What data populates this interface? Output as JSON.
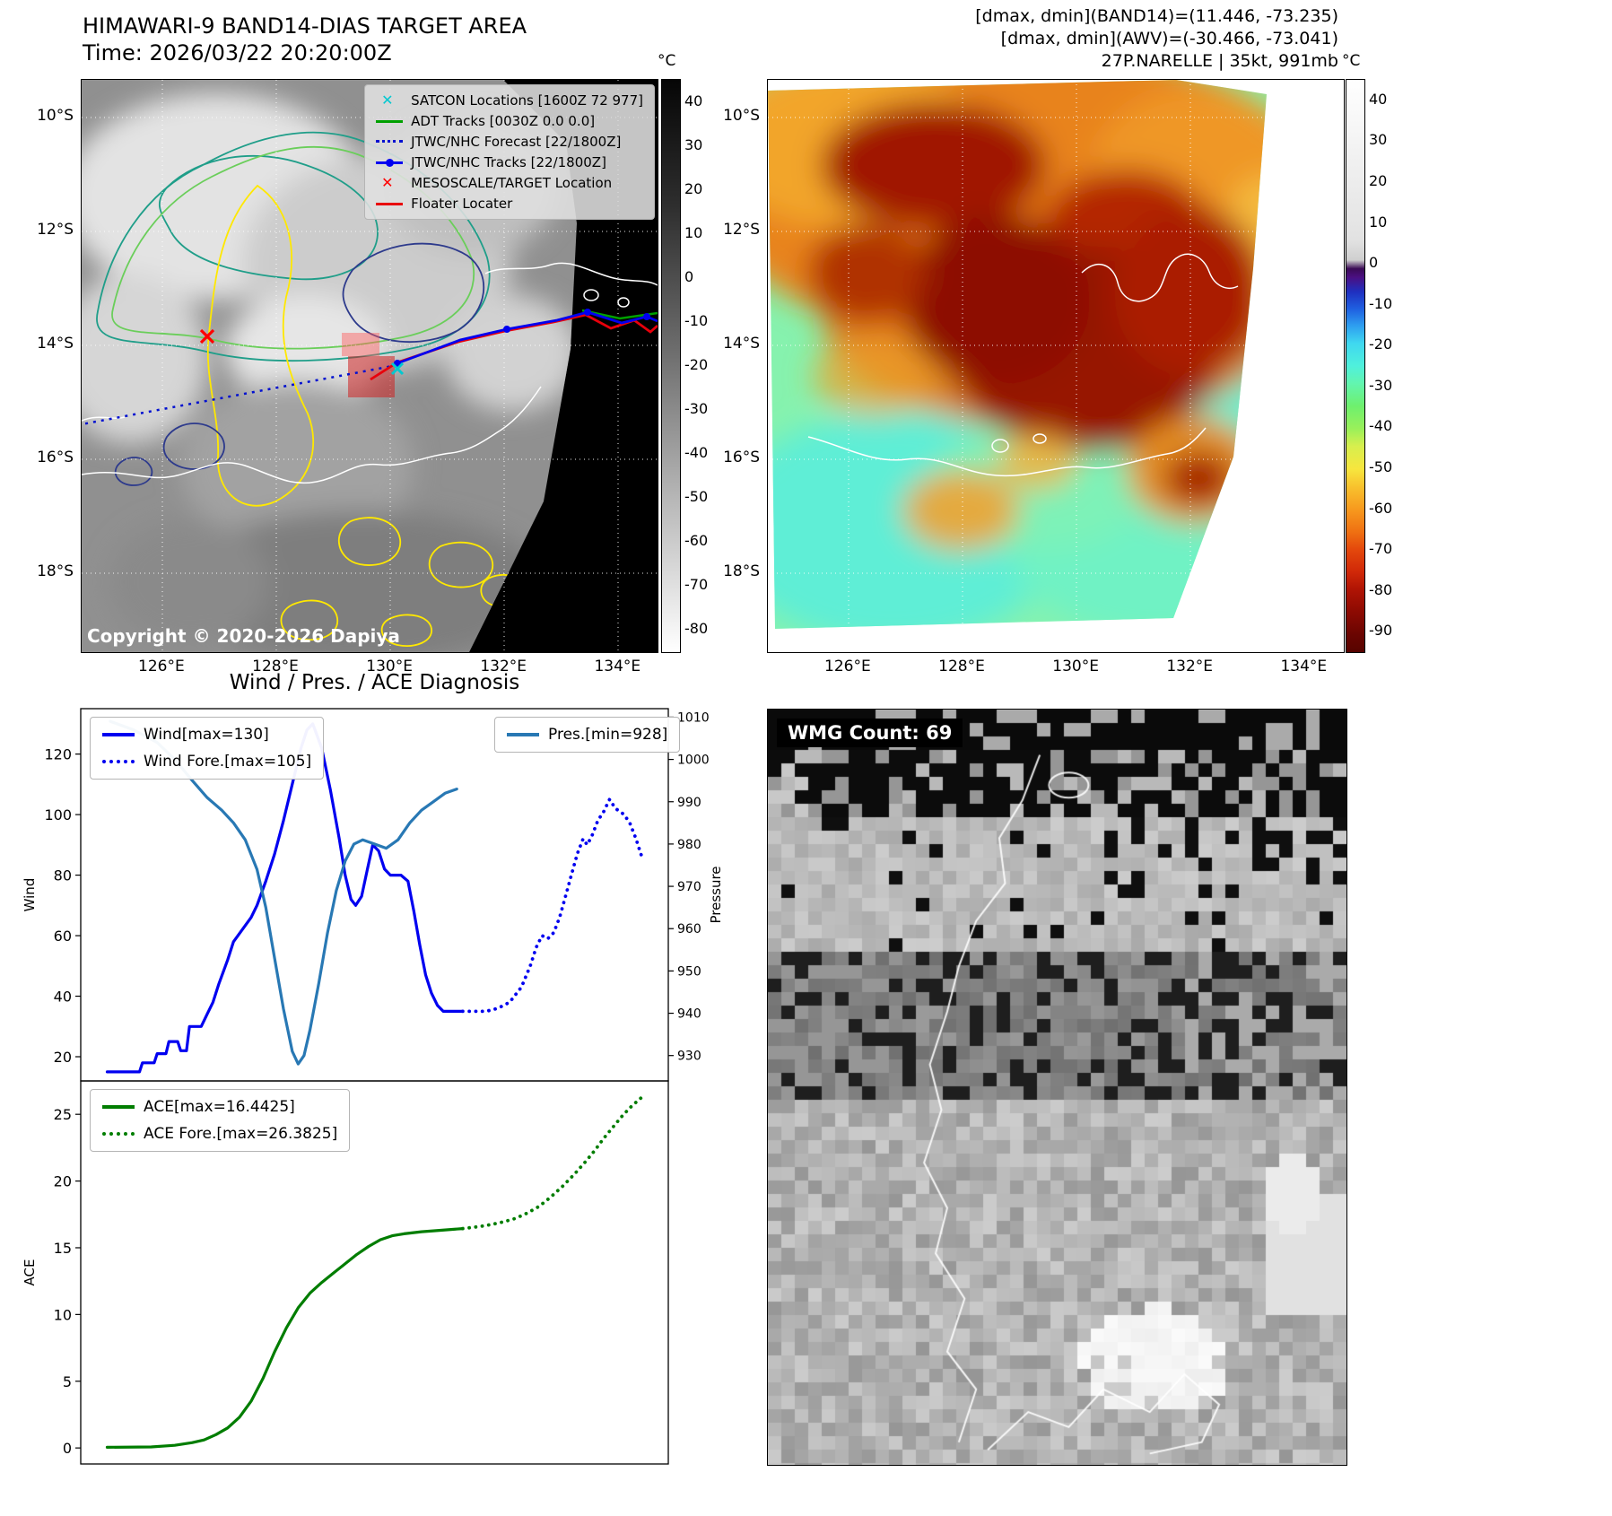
{
  "panel_tl": {
    "title": "HIMAWARI-9 BAND14-DIAS TARGET AREA",
    "subtitle": "Time: 2026/03/22 20:20:00Z",
    "copyright": "Copyright © 2020-2026 Dapiya",
    "legend": [
      {
        "label": "SATCON Locations [1600Z 72 977]",
        "marker": "cyan-x"
      },
      {
        "label": "ADT Tracks [0030Z 0.0 0.0]",
        "marker": "green-line"
      },
      {
        "label": "JTWC/NHC Forecast [22/1800Z]",
        "marker": "blue-dotted"
      },
      {
        "label": "JTWC/NHC Tracks [22/1800Z]",
        "marker": "blue-line-dot"
      },
      {
        "label": "MESOSCALE/TARGET Location",
        "marker": "red-x"
      },
      {
        "label": "Floater Locater",
        "marker": "red-line"
      }
    ],
    "lat_labels": [
      "10°S",
      "12°S",
      "14°S",
      "16°S",
      "18°S"
    ],
    "lon_labels": [
      "126°E",
      "128°E",
      "130°E",
      "132°E",
      "134°E"
    ],
    "colorbar": {
      "unit": "°C",
      "max": 45,
      "min": -85,
      "ticks": [
        40,
        30,
        20,
        10,
        0,
        -10,
        -20,
        -30,
        -40,
        -50,
        -60,
        -70,
        -80
      ]
    }
  },
  "panel_tr": {
    "header_lines": [
      "[dmax, dmin](BAND14)=(11.446, -73.235)",
      "[dmax, dmin](AWV)=(-30.466, -73.041)",
      "27P.NARELLE | 35kt, 991mb"
    ],
    "lat_labels": [
      "10°S",
      "12°S",
      "14°S",
      "16°S",
      "18°S"
    ],
    "lon_labels": [
      "126°E",
      "128°E",
      "130°E",
      "132°E",
      "134°E"
    ],
    "colorbar": {
      "unit": "°C",
      "max": 45,
      "min": -95,
      "ticks": [
        40,
        30,
        20,
        10,
        0,
        -10,
        -20,
        -30,
        -40,
        -50,
        -60,
        -70,
        -80,
        -90
      ]
    }
  },
  "panel_br": {
    "badge": "WMG Count: 69"
  },
  "section_title": "Wind / Pres. / ACE Diagnosis",
  "accent_colors": {
    "wind_blue": "#0000f0",
    "pressure_teal": "#2878b4",
    "ace_green": "#007d00",
    "track_red": "#e8000b",
    "adt_green": "#00a000",
    "satcon_cyan": "#00c8d0"
  },
  "chart_data": [
    {
      "type": "line",
      "title": "Wind / Pressure diagnosis",
      "xlabel": "",
      "y_left": {
        "label": "Wind",
        "range": [
          12,
          135
        ],
        "ticks": [
          20,
          40,
          60,
          80,
          100,
          120
        ]
      },
      "y_right": {
        "label": "Pressure",
        "range": [
          924,
          1012
        ],
        "ticks": [
          930,
          940,
          950,
          960,
          970,
          980,
          990,
          1000,
          1010
        ]
      },
      "legend_position": "upper left / upper right",
      "series": [
        {
          "name": "Wind[max=130]",
          "style": "solid",
          "color": "#0000f0",
          "axis": "left",
          "points": [
            [
              0.045,
              15
            ],
            [
              0.1,
              15
            ],
            [
              0.105,
              18
            ],
            [
              0.125,
              18
            ],
            [
              0.13,
              21
            ],
            [
              0.145,
              21
            ],
            [
              0.15,
              25
            ],
            [
              0.165,
              25
            ],
            [
              0.17,
              22
            ],
            [
              0.18,
              22
            ],
            [
              0.185,
              30
            ],
            [
              0.205,
              30
            ],
            [
              0.215,
              34
            ],
            [
              0.225,
              38
            ],
            [
              0.235,
              44
            ],
            [
              0.25,
              52
            ],
            [
              0.26,
              58
            ],
            [
              0.275,
              62
            ],
            [
              0.29,
              66
            ],
            [
              0.3,
              70
            ],
            [
              0.315,
              78
            ],
            [
              0.33,
              87
            ],
            [
              0.345,
              98
            ],
            [
              0.36,
              110
            ],
            [
              0.375,
              122
            ],
            [
              0.385,
              128
            ],
            [
              0.395,
              130
            ],
            [
              0.41,
              122
            ],
            [
              0.425,
              108
            ],
            [
              0.44,
              92
            ],
            [
              0.45,
              80
            ],
            [
              0.46,
              72
            ],
            [
              0.468,
              70
            ],
            [
              0.478,
              73
            ],
            [
              0.488,
              82
            ],
            [
              0.497,
              90
            ],
            [
              0.507,
              88
            ],
            [
              0.517,
              82
            ],
            [
              0.527,
              80
            ],
            [
              0.545,
              80
            ],
            [
              0.557,
              78
            ],
            [
              0.567,
              68
            ],
            [
              0.577,
              57
            ],
            [
              0.587,
              47
            ],
            [
              0.597,
              41
            ],
            [
              0.607,
              37
            ],
            [
              0.617,
              35
            ],
            [
              0.65,
              35
            ]
          ]
        },
        {
          "name": "Wind Fore.[max=105]",
          "style": "dotted",
          "color": "#0000f0",
          "axis": "left",
          "points": [
            [
              0.65,
              35
            ],
            [
              0.69,
              35
            ],
            [
              0.71,
              36
            ],
            [
              0.73,
              38
            ],
            [
              0.75,
              43
            ],
            [
              0.765,
              50
            ],
            [
              0.775,
              56
            ],
            [
              0.785,
              60
            ],
            [
              0.795,
              59
            ],
            [
              0.805,
              61
            ],
            [
              0.815,
              66
            ],
            [
              0.825,
              73
            ],
            [
              0.835,
              80
            ],
            [
              0.845,
              87
            ],
            [
              0.855,
              92
            ],
            [
              0.862,
              90
            ],
            [
              0.87,
              93
            ],
            [
              0.88,
              98
            ],
            [
              0.89,
              101
            ],
            [
              0.9,
              105
            ],
            [
              0.91,
              102
            ],
            [
              0.925,
              100
            ],
            [
              0.935,
              97
            ],
            [
              0.945,
              92
            ],
            [
              0.955,
              86
            ]
          ]
        },
        {
          "name": "Pres.[min=928]",
          "style": "solid",
          "color": "#2878b4",
          "axis": "right",
          "points": [
            [
              0.05,
              1009
            ],
            [
              0.09,
              1007
            ],
            [
              0.13,
              1004
            ],
            [
              0.16,
              1000
            ],
            [
              0.19,
              995
            ],
            [
              0.215,
              991
            ],
            [
              0.24,
              988
            ],
            [
              0.26,
              985
            ],
            [
              0.28,
              981
            ],
            [
              0.3,
              974
            ],
            [
              0.315,
              965
            ],
            [
              0.33,
              953
            ],
            [
              0.345,
              941
            ],
            [
              0.36,
              931
            ],
            [
              0.37,
              928
            ],
            [
              0.38,
              930
            ],
            [
              0.39,
              936
            ],
            [
              0.405,
              947
            ],
            [
              0.42,
              959
            ],
            [
              0.435,
              969
            ],
            [
              0.45,
              976
            ],
            [
              0.465,
              980
            ],
            [
              0.48,
              981
            ],
            [
              0.5,
              980
            ],
            [
              0.52,
              979
            ],
            [
              0.54,
              981
            ],
            [
              0.56,
              985
            ],
            [
              0.58,
              988
            ],
            [
              0.6,
              990
            ],
            [
              0.62,
              992
            ],
            [
              0.64,
              993
            ]
          ]
        }
      ]
    },
    {
      "type": "line",
      "title": "ACE diagnosis",
      "xlabel": "",
      "y_left": {
        "label": "ACE",
        "range": [
          -1.2,
          27.5
        ],
        "ticks": [
          0,
          5,
          10,
          15,
          20,
          25
        ]
      },
      "legend_position": "upper left",
      "series": [
        {
          "name": "ACE[max=16.4425]",
          "style": "solid",
          "color": "#007d00",
          "axis": "left",
          "points": [
            [
              0.045,
              0.05
            ],
            [
              0.12,
              0.08
            ],
            [
              0.16,
              0.2
            ],
            [
              0.19,
              0.4
            ],
            [
              0.21,
              0.6
            ],
            [
              0.23,
              1.0
            ],
            [
              0.25,
              1.5
            ],
            [
              0.27,
              2.3
            ],
            [
              0.29,
              3.5
            ],
            [
              0.31,
              5.2
            ],
            [
              0.33,
              7.2
            ],
            [
              0.35,
              9.0
            ],
            [
              0.37,
              10.5
            ],
            [
              0.39,
              11.6
            ],
            [
              0.41,
              12.4
            ],
            [
              0.43,
              13.1
            ],
            [
              0.45,
              13.8
            ],
            [
              0.47,
              14.5
            ],
            [
              0.49,
              15.1
            ],
            [
              0.51,
              15.6
            ],
            [
              0.53,
              15.9
            ],
            [
              0.55,
              16.05
            ],
            [
              0.58,
              16.2
            ],
            [
              0.61,
              16.3
            ],
            [
              0.65,
              16.44
            ]
          ]
        },
        {
          "name": "ACE Fore.[max=26.3825]",
          "style": "dotted",
          "color": "#007d00",
          "axis": "left",
          "points": [
            [
              0.65,
              16.44
            ],
            [
              0.68,
              16.6
            ],
            [
              0.7,
              16.75
            ],
            [
              0.72,
              16.95
            ],
            [
              0.74,
              17.2
            ],
            [
              0.76,
              17.6
            ],
            [
              0.78,
              18.1
            ],
            [
              0.8,
              18.8
            ],
            [
              0.82,
              19.6
            ],
            [
              0.84,
              20.5
            ],
            [
              0.86,
              21.5
            ],
            [
              0.875,
              22.3
            ],
            [
              0.89,
              23.2
            ],
            [
              0.905,
              24.0
            ],
            [
              0.92,
              24.8
            ],
            [
              0.935,
              25.5
            ],
            [
              0.95,
              26.1
            ],
            [
              0.958,
              26.38
            ]
          ]
        }
      ]
    }
  ]
}
